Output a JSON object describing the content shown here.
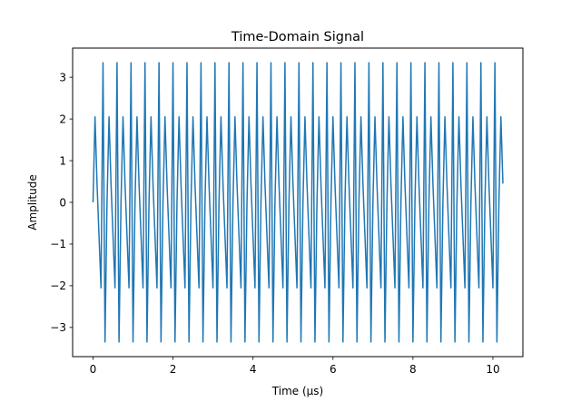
{
  "chart_data": {
    "type": "line",
    "title": "Time-Domain Signal",
    "xlabel": "Time (μs)",
    "ylabel": "Amplitude",
    "xlim": [
      -0.51,
      10.75
    ],
    "ylim": [
      -3.7,
      3.7
    ],
    "xticks": [
      0,
      2,
      4,
      6,
      8,
      10
    ],
    "yticks": [
      -3,
      -2,
      -1,
      0,
      1,
      2,
      3
    ],
    "xtick_labels": [
      "0",
      "2",
      "4",
      "6",
      "8",
      "10"
    ],
    "ytick_labels": [
      "−3",
      "−2",
      "−1",
      "0",
      "1",
      "2",
      "3"
    ],
    "grid": false,
    "legend": "none",
    "series": [
      {
        "color": "#1f77b4",
        "sample_interval": 0.05,
        "x_start": 0,
        "x_end": 10.25,
        "period": 0.35,
        "repeating_values": [
          0,
          2.05,
          0.45,
          -0.8,
          -2.05,
          3.35,
          -3.35
        ]
      }
    ]
  }
}
